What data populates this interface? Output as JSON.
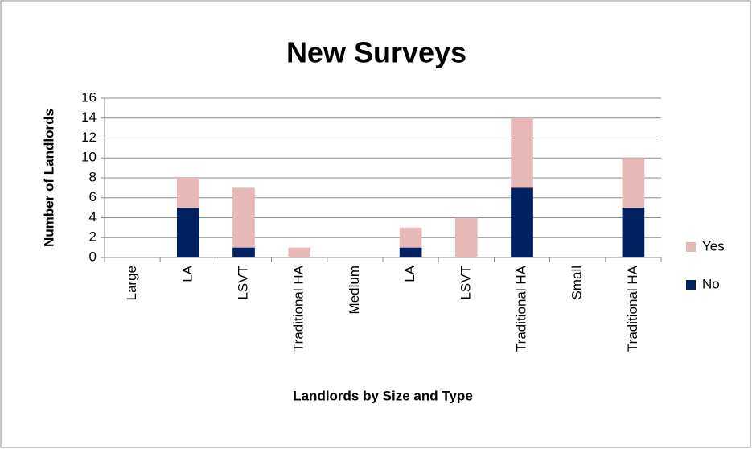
{
  "chart_data": {
    "type": "bar",
    "stacked": true,
    "title": "New Surveys",
    "x_label": "Landlords by Size and Type",
    "y_label": "Number of Landlords",
    "categories": [
      "Large",
      "LA",
      "LSVT",
      "Traditional HA",
      "Medium",
      "LA",
      "LSVT",
      "Traditional HA",
      "Small",
      "Traditional HA"
    ],
    "series": [
      {
        "name": "No",
        "color": "#002060",
        "values": [
          null,
          5,
          1,
          0,
          null,
          1,
          0,
          7,
          null,
          5
        ]
      },
      {
        "name": "Yes",
        "color": "#e6b9b8",
        "values": [
          null,
          3,
          6,
          1,
          null,
          2,
          4,
          7,
          null,
          5
        ]
      }
    ],
    "ylim": [
      0,
      16
    ],
    "yticks": [
      0,
      2,
      4,
      6,
      8,
      10,
      12,
      14,
      16
    ],
    "grid": true,
    "legend": "right"
  }
}
